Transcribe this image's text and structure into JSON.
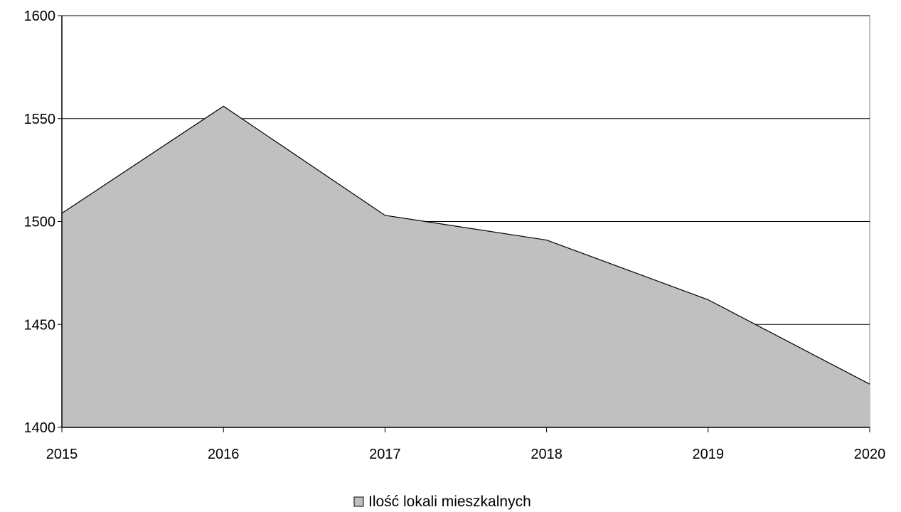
{
  "chart_data": {
    "type": "area",
    "x": [
      "2015",
      "2016",
      "2017",
      "2018",
      "2019",
      "2020"
    ],
    "series": [
      {
        "name": "Ilość lokali mieszkalnych",
        "values": [
          1504,
          1556,
          1503,
          1491,
          1462,
          1421
        ]
      }
    ],
    "ylim": [
      1400,
      1600
    ],
    "yticks": [
      1400,
      1450,
      1500,
      1550,
      1600
    ],
    "grid": true,
    "legend_position": "bottom",
    "colors": {
      "fill": "#c0c0c0",
      "line": "#000000",
      "grid": "#000000",
      "frame": "#808080"
    }
  }
}
